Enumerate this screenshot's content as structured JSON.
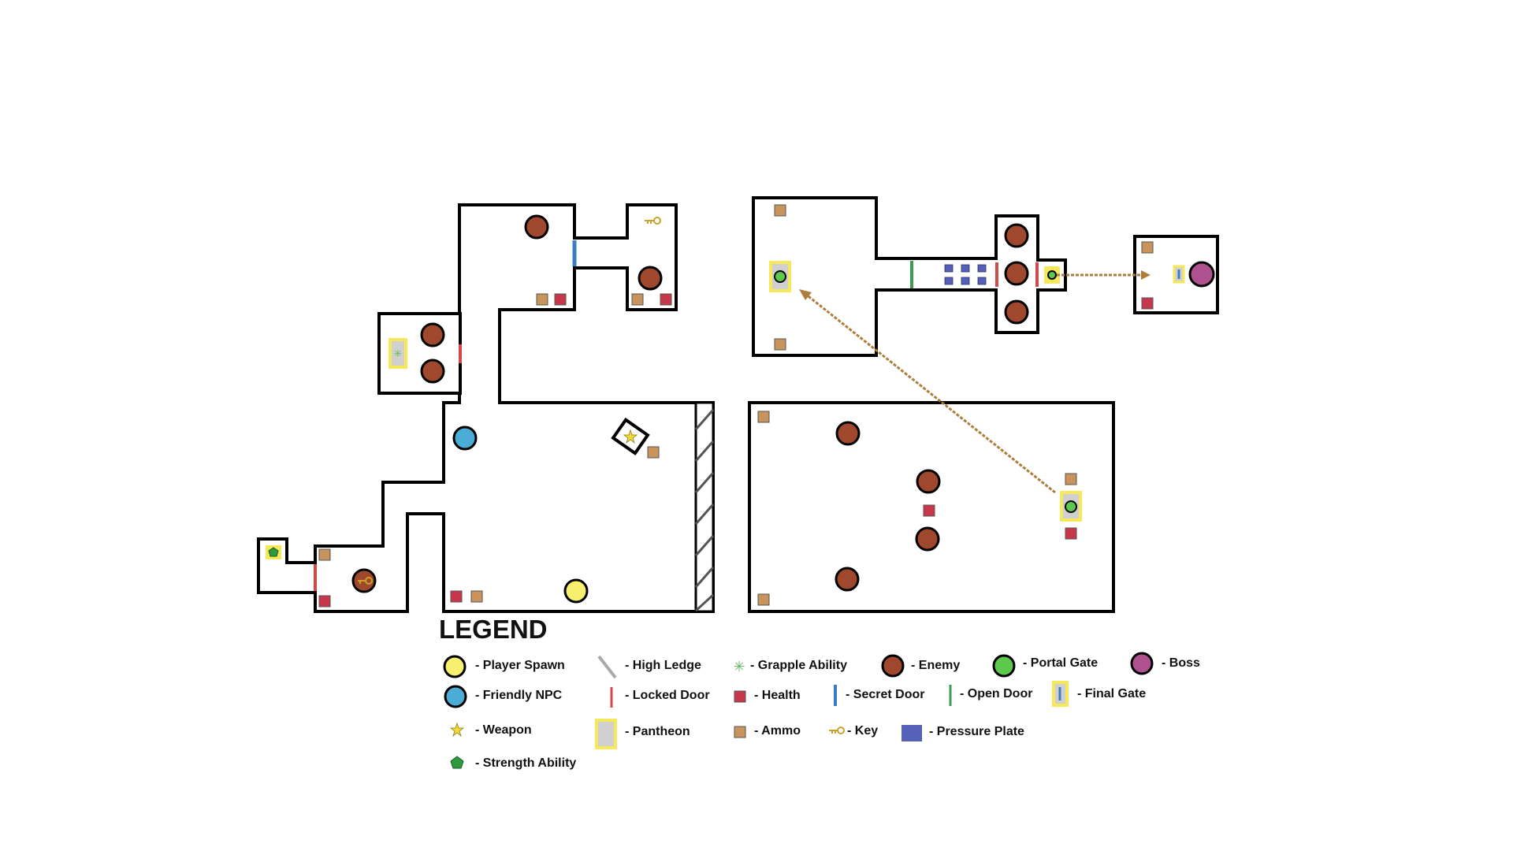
{
  "colors": {
    "wall": "#000000",
    "enemy": "#a0482e",
    "player_spawn": "#f7ef6e",
    "friendly_npc": "#4bacd6",
    "portal_gate": "#5cc94d",
    "boss": "#b0518f",
    "locked_door": "#d04a4a",
    "secret_door": "#3d7cc4",
    "open_door": "#3f9a52",
    "health": "#c8364a",
    "ammo": "#c8945c",
    "pressure_plate": "#5560b8",
    "pantheon_border": "#f5e85a",
    "pantheon_fill": "#d0d0d0",
    "arrow": "#b07c3c",
    "weapon_star": "#f3d93a",
    "strength": "#2d9a3e",
    "grapple": "#5fb85f",
    "key": "#c9a227"
  },
  "legend": {
    "title": "LEGEND",
    "items": [
      {
        "icon": "player-spawn-icon",
        "label": "- Player Spawn"
      },
      {
        "icon": "high-ledge-icon",
        "label": "- High Ledge"
      },
      {
        "icon": "grapple-ability-icon",
        "label": "- Grapple Ability"
      },
      {
        "icon": "enemy-icon",
        "label": "- Enemy"
      },
      {
        "icon": "portal-gate-icon",
        "label": "- Portal Gate"
      },
      {
        "icon": "boss-icon",
        "label": "- Boss"
      },
      {
        "icon": "friendly-npc-icon",
        "label": "- Friendly NPC"
      },
      {
        "icon": "locked-door-icon",
        "label": "- Locked Door"
      },
      {
        "icon": "health-icon",
        "label": "- Health"
      },
      {
        "icon": "secret-door-icon",
        "label": "- Secret Door"
      },
      {
        "icon": "open-door-icon",
        "label": "- Open Door"
      },
      {
        "icon": "final-gate-icon",
        "label": "- Final Gate"
      },
      {
        "icon": "weapon-icon",
        "label": "- Weapon"
      },
      {
        "icon": "pantheon-icon",
        "label": "- Pantheon"
      },
      {
        "icon": "ammo-icon",
        "label": "- Ammo"
      },
      {
        "icon": "key-icon",
        "label": "- Key"
      },
      {
        "icon": "pressure-plate-icon",
        "label": "- Pressure Plate"
      },
      {
        "icon": "strength-ability-icon",
        "label": "- Strength Ability"
      }
    ]
  }
}
